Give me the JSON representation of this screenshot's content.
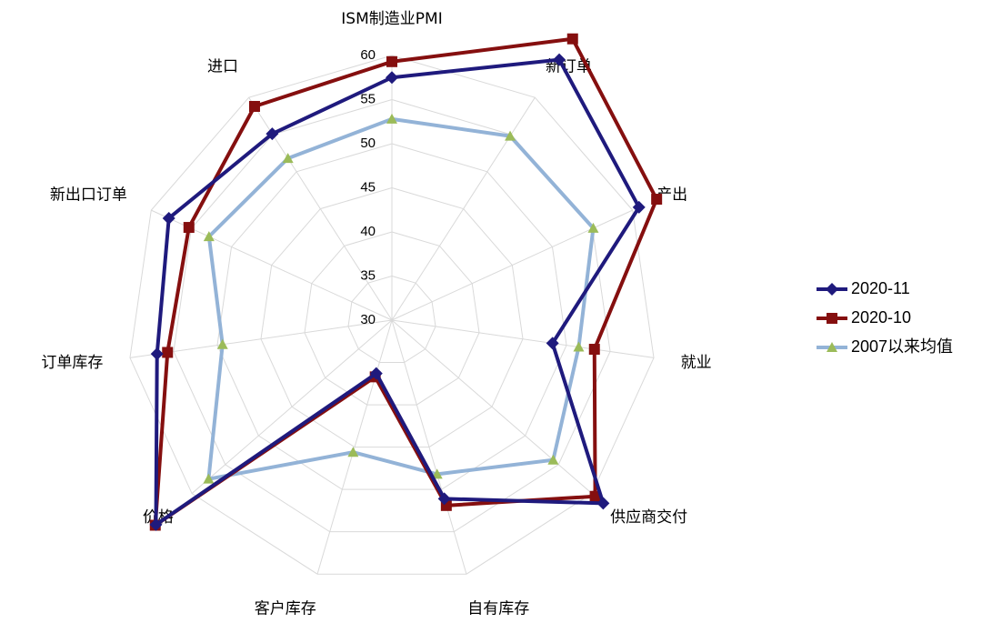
{
  "chart_data": {
    "type": "radar",
    "categories": [
      "ISM制造业PMI",
      "新订单",
      "产出",
      "就业",
      "供应商交付",
      "自有库存",
      "客户库存",
      "价格",
      "订单库存",
      "新出口订单",
      "进口"
    ],
    "rlim": [
      30,
      60
    ],
    "rticks": [
      30,
      35,
      40,
      45,
      50,
      55,
      60
    ],
    "grid": true,
    "legend": "right",
    "series": [
      {
        "name": "2020-11",
        "color": "#1f1a7d",
        "marker": "diamond",
        "values": [
          57.5,
          65.1,
          60.8,
          48.4,
          61.7,
          51.1,
          36.3,
          65.4,
          56.9,
          57.8,
          55.1
        ]
      },
      {
        "name": "2020-10",
        "color": "#850f0f",
        "marker": "square",
        "values": [
          59.3,
          67.9,
          63.0,
          53.2,
          60.5,
          51.9,
          36.7,
          65.5,
          55.7,
          55.3,
          58.8
        ]
      },
      {
        "name": "2007以来均值",
        "color": "#93b3d7",
        "marker": "triangle",
        "marker_color": "#9bbb59",
        "values": [
          52.8,
          54.8,
          55.1,
          51.4,
          54.2,
          48.2,
          45.6,
          57.5,
          49.4,
          52.8,
          51.8
        ]
      }
    ]
  }
}
